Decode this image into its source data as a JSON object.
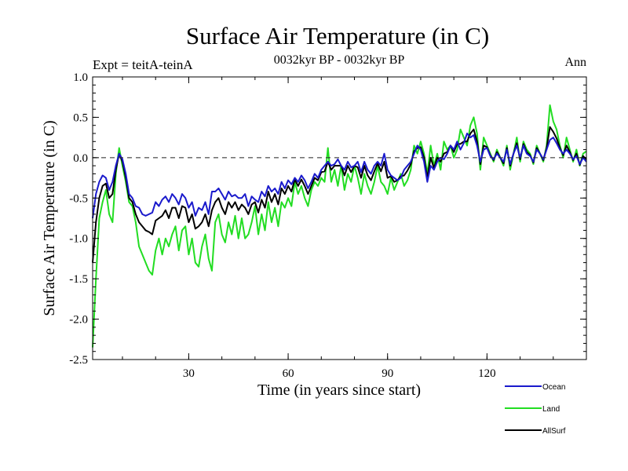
{
  "chart_data": {
    "type": "line",
    "title": "Surface Air Temperature (in C)",
    "subtitle": "0032kyr BP - 0032kyr BP",
    "left_label": "Expt = teitA-teinA",
    "right_label": "Ann",
    "xlabel": "Time (in years since start)",
    "ylabel": "Surface Air Temperature (in C)",
    "xlim": [
      1,
      150
    ],
    "ylim": [
      -2.5,
      1.0
    ],
    "xticks": [
      30,
      60,
      90,
      120
    ],
    "xtick_labels": [
      "30",
      "60",
      "90",
      "120"
    ],
    "yticks": [
      -2.5,
      -2.0,
      -1.5,
      -1.0,
      -0.5,
      0.0,
      0.5,
      1.0
    ],
    "ytick_labels": [
      "-2.5",
      "-2.0",
      "-1.5",
      "-1.0",
      "-0.5",
      "0.0",
      "0.5",
      "1.0"
    ],
    "zero_line": 0.0,
    "series": [
      {
        "name": "Ocean",
        "color": "#1a1acc",
        "values": [
          -0.75,
          -0.45,
          -0.3,
          -0.22,
          -0.25,
          -0.4,
          -0.3,
          -0.1,
          0.05,
          -0.02,
          -0.2,
          -0.45,
          -0.5,
          -0.6,
          -0.62,
          -0.7,
          -0.72,
          -0.7,
          -0.68,
          -0.55,
          -0.6,
          -0.52,
          -0.48,
          -0.55,
          -0.45,
          -0.5,
          -0.58,
          -0.45,
          -0.5,
          -0.62,
          -0.55,
          -0.72,
          -0.62,
          -0.65,
          -0.55,
          -0.7,
          -0.42,
          -0.42,
          -0.38,
          -0.45,
          -0.52,
          -0.42,
          -0.48,
          -0.46,
          -0.5,
          -0.5,
          -0.45,
          -0.6,
          -0.48,
          -0.52,
          -0.55,
          -0.42,
          -0.48,
          -0.35,
          -0.42,
          -0.38,
          -0.45,
          -0.3,
          -0.38,
          -0.28,
          -0.33,
          -0.25,
          -0.3,
          -0.22,
          -0.28,
          -0.38,
          -0.3,
          -0.2,
          -0.25,
          -0.15,
          -0.1,
          -0.05,
          -0.1,
          -0.08,
          -0.02,
          -0.1,
          -0.15,
          -0.05,
          -0.12,
          -0.1,
          -0.05,
          -0.18,
          -0.05,
          -0.15,
          -0.2,
          -0.1,
          -0.05,
          -0.1,
          0.05,
          -0.15,
          -0.22,
          -0.25,
          -0.28,
          -0.25,
          -0.15,
          -0.1,
          -0.05,
          0.05,
          0.15,
          0.1,
          -0.05,
          -0.3,
          -0.1,
          -0.15,
          -0.05,
          0.0,
          -0.02,
          0.05,
          0.15,
          0.1,
          0.2,
          0.1,
          0.18,
          0.3,
          0.25,
          0.28,
          0.15,
          -0.05,
          0.1,
          0.12,
          0.02,
          -0.02,
          0.05,
          0.0,
          -0.05,
          0.1,
          -0.08,
          0.05,
          0.15,
          0.0,
          0.15,
          0.05,
          0.02,
          -0.05,
          0.1,
          0.05,
          -0.02,
          0.1,
          0.22,
          0.25,
          0.18,
          0.1,
          0.05,
          0.1,
          0.05,
          -0.02,
          0.02,
          -0.08,
          0.0,
          -0.05
        ]
      },
      {
        "name": "Land",
        "color": "#22dd22",
        "values": [
          -2.35,
          -1.5,
          -0.75,
          -0.55,
          -0.4,
          -0.7,
          -0.8,
          -0.2,
          0.12,
          -0.1,
          -0.3,
          -0.55,
          -0.6,
          -0.8,
          -1.1,
          -1.2,
          -1.3,
          -1.4,
          -1.45,
          -1.15,
          -1.0,
          -1.2,
          -1.0,
          -1.1,
          -0.95,
          -0.85,
          -1.15,
          -0.9,
          -0.85,
          -1.2,
          -1.0,
          -1.3,
          -1.35,
          -1.1,
          -0.95,
          -1.25,
          -1.4,
          -0.8,
          -0.7,
          -0.95,
          -1.05,
          -0.8,
          -0.95,
          -0.72,
          -1.0,
          -0.75,
          -1.0,
          -0.95,
          -0.8,
          -0.6,
          -0.95,
          -0.7,
          -0.9,
          -0.55,
          -0.8,
          -0.62,
          -0.85,
          -0.55,
          -0.62,
          -0.5,
          -0.6,
          -0.3,
          -0.45,
          -0.35,
          -0.5,
          -0.6,
          -0.4,
          -0.3,
          -0.35,
          -0.25,
          -0.3,
          0.12,
          -0.3,
          -0.15,
          -0.35,
          -0.1,
          -0.4,
          -0.2,
          -0.3,
          -0.1,
          -0.25,
          -0.45,
          -0.2,
          -0.35,
          -0.45,
          -0.3,
          -0.1,
          -0.3,
          -0.35,
          -0.45,
          -0.25,
          -0.4,
          -0.3,
          -0.2,
          -0.35,
          -0.28,
          -0.15,
          0.15,
          0.05,
          0.2,
          0.05,
          -0.2,
          0.15,
          -0.1,
          0.05,
          -0.15,
          0.2,
          0.1,
          0.15,
          0.0,
          0.1,
          0.35,
          0.25,
          0.15,
          0.4,
          0.5,
          0.3,
          -0.15,
          0.25,
          0.15,
          0.05,
          -0.05,
          0.1,
          0.0,
          -0.1,
          0.15,
          -0.15,
          0.05,
          0.25,
          -0.05,
          0.2,
          0.1,
          0.05,
          -0.08,
          0.15,
          0.05,
          -0.05,
          0.15,
          0.65,
          0.45,
          0.35,
          0.15,
          0.0,
          0.25,
          0.1,
          -0.05,
          0.1,
          -0.1,
          0.05,
          0.08
        ]
      },
      {
        "name": "AllSurf",
        "color": "#000000",
        "values": [
          -1.3,
          -0.8,
          -0.5,
          -0.35,
          -0.32,
          -0.5,
          -0.45,
          -0.15,
          0.05,
          -0.05,
          -0.25,
          -0.5,
          -0.55,
          -0.7,
          -0.8,
          -0.85,
          -0.9,
          -0.92,
          -0.95,
          -0.78,
          -0.75,
          -0.72,
          -0.65,
          -0.75,
          -0.62,
          -0.62,
          -0.75,
          -0.6,
          -0.62,
          -0.8,
          -0.7,
          -0.88,
          -0.85,
          -0.8,
          -0.7,
          -0.85,
          -0.65,
          -0.55,
          -0.5,
          -0.62,
          -0.7,
          -0.55,
          -0.62,
          -0.55,
          -0.65,
          -0.58,
          -0.62,
          -0.7,
          -0.58,
          -0.55,
          -0.68,
          -0.52,
          -0.62,
          -0.42,
          -0.55,
          -0.45,
          -0.58,
          -0.38,
          -0.45,
          -0.35,
          -0.42,
          -0.27,
          -0.35,
          -0.27,
          -0.35,
          -0.45,
          -0.35,
          -0.25,
          -0.28,
          -0.18,
          -0.17,
          -0.05,
          -0.15,
          -0.1,
          -0.1,
          -0.1,
          -0.22,
          -0.1,
          -0.18,
          -0.1,
          -0.12,
          -0.25,
          -0.1,
          -0.22,
          -0.28,
          -0.17,
          -0.07,
          -0.17,
          -0.05,
          -0.25,
          -0.23,
          -0.3,
          -0.28,
          -0.23,
          -0.22,
          -0.16,
          -0.08,
          0.08,
          0.12,
          0.13,
          0.0,
          -0.25,
          0.0,
          -0.13,
          0.0,
          -0.05,
          0.05,
          0.07,
          0.15,
          0.07,
          0.17,
          0.17,
          0.2,
          0.2,
          0.3,
          0.35,
          0.2,
          -0.08,
          0.15,
          0.13,
          0.03,
          -0.03,
          0.07,
          0.0,
          -0.07,
          0.12,
          -0.1,
          0.05,
          0.18,
          -0.02,
          0.17,
          0.07,
          0.03,
          -0.06,
          0.12,
          0.05,
          -0.03,
          0.12,
          0.38,
          0.32,
          0.24,
          0.12,
          0.03,
          0.15,
          0.07,
          -0.03,
          0.05,
          -0.09,
          0.02,
          -0.02
        ]
      }
    ],
    "legend": {
      "placement": "bottom-right"
    }
  }
}
